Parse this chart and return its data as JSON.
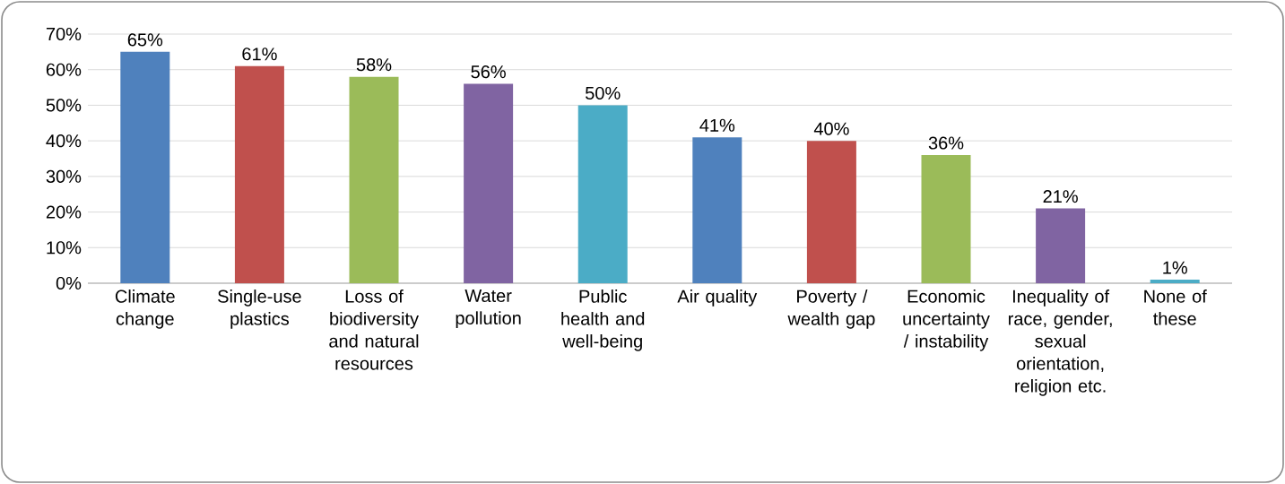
{
  "chart_data": {
    "type": "bar",
    "categories": [
      "Climate change",
      "Single-use plastics",
      "Loss of biodiversity and natural resources",
      "Water pollution",
      "Public health and well-being",
      "Air quality",
      "Poverty / wealth gap",
      "Economic uncertainty / instability",
      "Inequality of race, gender, sexual orientation, religion etc.",
      "None of these"
    ],
    "values": [
      65,
      61,
      58,
      56,
      50,
      41,
      40,
      36,
      21,
      1
    ],
    "colors": [
      "#4f81bd",
      "#c0504d",
      "#9bbb59",
      "#8064a2",
      "#4bacc6",
      "#4f81bd",
      "#c0504d",
      "#9bbb59",
      "#8064a2",
      "#4bacc6"
    ],
    "value_labels": [
      "65%",
      "61%",
      "58%",
      "56%",
      "50%",
      "41%",
      "40%",
      "36%",
      "21%",
      "1%"
    ],
    "ylim": [
      0,
      70
    ],
    "yticks": [
      {
        "value": 0,
        "label": "0%"
      },
      {
        "value": 10,
        "label": "10%"
      },
      {
        "value": 20,
        "label": "20%"
      },
      {
        "value": 30,
        "label": "30%"
      },
      {
        "value": 40,
        "label": "40%"
      },
      {
        "value": 50,
        "label": "50%"
      },
      {
        "value": 60,
        "label": "60%"
      },
      {
        "value": 70,
        "label": "70%"
      }
    ],
    "grid": "y"
  }
}
